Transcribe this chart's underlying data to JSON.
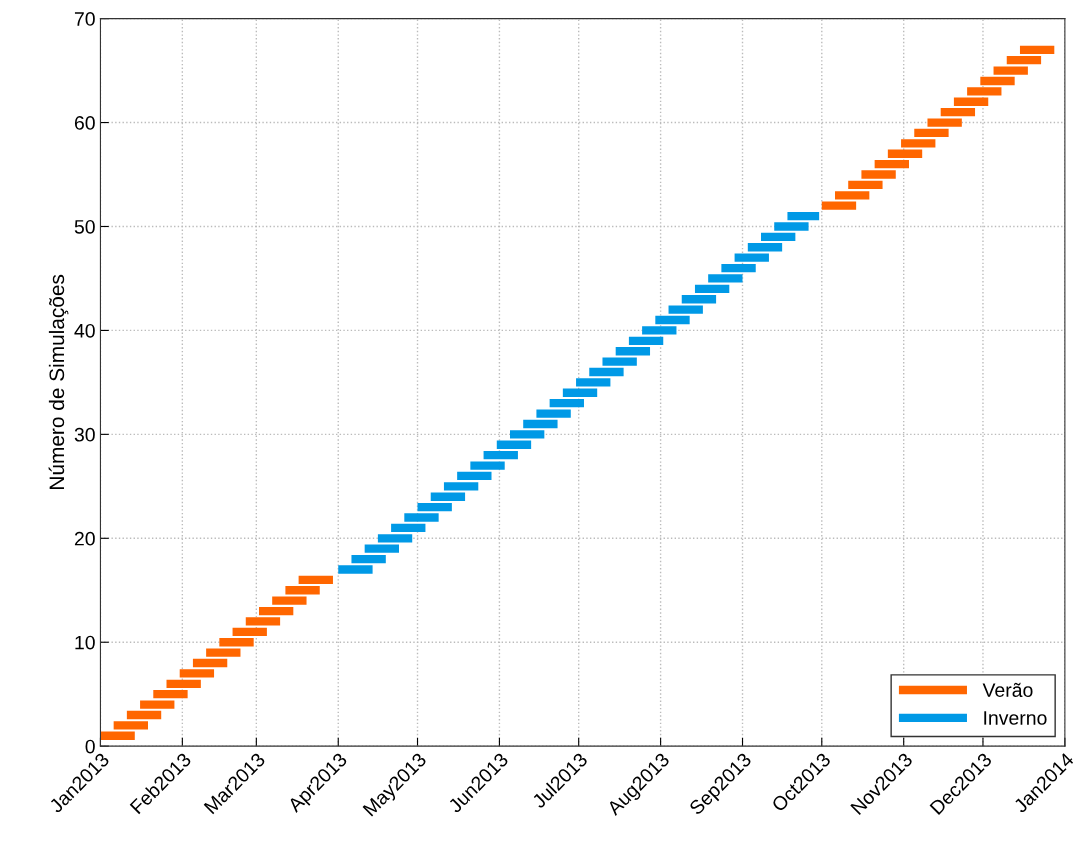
{
  "chart_data": {
    "type": "line",
    "ylabel": "Número de Simulações",
    "legend": "bottom right",
    "grid": true,
    "line_style": "solid",
    "marker": "none",
    "xlim": [
      "2013-01-01",
      "2014-01-01"
    ],
    "ylim": [
      0,
      70
    ],
    "yticks": [
      0,
      10,
      20,
      30,
      40,
      50,
      60,
      70
    ],
    "xticks": [
      {
        "value": "2013-01-01",
        "label": "Jan2013"
      },
      {
        "value": "2013-02-01",
        "label": "Feb2013"
      },
      {
        "value": "2013-03-01",
        "label": "Mar2013"
      },
      {
        "value": "2013-04-01",
        "label": "Apr2013"
      },
      {
        "value": "2013-05-01",
        "label": "May2013"
      },
      {
        "value": "2013-06-01",
        "label": "Jun2013"
      },
      {
        "value": "2013-07-01",
        "label": "Jul2013"
      },
      {
        "value": "2013-08-01",
        "label": "Aug2013"
      },
      {
        "value": "2013-09-01",
        "label": "Sep2013"
      },
      {
        "value": "2013-10-01",
        "label": "Oct2013"
      },
      {
        "value": "2013-11-01",
        "label": "Nov2013"
      },
      {
        "value": "2013-12-01",
        "label": "Dec2013"
      },
      {
        "value": "2014-01-01",
        "label": "Jan2014"
      }
    ],
    "series": [
      {
        "name": "Verão",
        "color": "#ff6600",
        "x": [
          "2013-01-01",
          "2013-01-14",
          null,
          "2013-01-06",
          "2013-01-19",
          null,
          "2013-01-11",
          "2013-01-24",
          null,
          "2013-01-16",
          "2013-01-29",
          null,
          "2013-01-21",
          "2013-02-03",
          null,
          "2013-01-26",
          "2013-02-08",
          null,
          "2013-01-31",
          "2013-02-13",
          null,
          "2013-02-05",
          "2013-02-18",
          null,
          "2013-02-10",
          "2013-02-23",
          null,
          "2013-02-15",
          "2013-02-28",
          null,
          "2013-02-20",
          "2013-03-05",
          null,
          "2013-02-25",
          "2013-03-10",
          null,
          "2013-03-02",
          "2013-03-15",
          null,
          "2013-03-07",
          "2013-03-20",
          null,
          "2013-03-12",
          "2013-03-25",
          null,
          "2013-03-17",
          "2013-03-30",
          null,
          "2013-10-01",
          "2013-10-14",
          null,
          "2013-10-06",
          "2013-10-19",
          null,
          "2013-10-11",
          "2013-10-24",
          null,
          "2013-10-16",
          "2013-10-29",
          null,
          "2013-10-21",
          "2013-11-03",
          null,
          "2013-10-26",
          "2013-11-08",
          null,
          "2013-10-31",
          "2013-11-13",
          null,
          "2013-11-05",
          "2013-11-18",
          null,
          "2013-11-10",
          "2013-11-23",
          null,
          "2013-11-15",
          "2013-11-28",
          null,
          "2013-11-20",
          "2013-12-03",
          null,
          "2013-11-25",
          "2013-12-08",
          null,
          "2013-11-30",
          "2013-12-13",
          null,
          "2013-12-05",
          "2013-12-18",
          null,
          "2013-12-10",
          "2013-12-23",
          null,
          "2013-12-15",
          "2013-12-28",
          null
        ],
        "values": [
          1,
          1,
          null,
          2,
          2,
          null,
          3,
          3,
          null,
          4,
          4,
          null,
          5,
          5,
          null,
          6,
          6,
          null,
          7,
          7,
          null,
          8,
          8,
          null,
          9,
          9,
          null,
          10,
          10,
          null,
          11,
          11,
          null,
          12,
          12,
          null,
          13,
          13,
          null,
          14,
          14,
          null,
          15,
          15,
          null,
          16,
          16,
          null,
          52,
          52,
          null,
          53,
          53,
          null,
          54,
          54,
          null,
          55,
          55,
          null,
          56,
          56,
          null,
          57,
          57,
          null,
          58,
          58,
          null,
          59,
          59,
          null,
          60,
          60,
          null,
          61,
          61,
          null,
          62,
          62,
          null,
          63,
          63,
          null,
          64,
          64,
          null,
          65,
          65,
          null,
          66,
          66,
          null,
          67,
          67,
          null
        ]
      },
      {
        "name": "Inverno",
        "color": "#0099e6",
        "x": [
          "2013-04-01",
          "2013-04-14",
          null,
          "2013-04-06",
          "2013-04-19",
          null,
          "2013-04-11",
          "2013-04-24",
          null,
          "2013-04-16",
          "2013-04-29",
          null,
          "2013-04-21",
          "2013-05-04",
          null,
          "2013-04-26",
          "2013-05-09",
          null,
          "2013-05-01",
          "2013-05-14",
          null,
          "2013-05-06",
          "2013-05-19",
          null,
          "2013-05-11",
          "2013-05-24",
          null,
          "2013-05-16",
          "2013-05-29",
          null,
          "2013-05-21",
          "2013-06-03",
          null,
          "2013-05-26",
          "2013-06-08",
          null,
          "2013-05-31",
          "2013-06-13",
          null,
          "2013-06-05",
          "2013-06-18",
          null,
          "2013-06-10",
          "2013-06-23",
          null,
          "2013-06-15",
          "2013-06-28",
          null,
          "2013-06-20",
          "2013-07-03",
          null,
          "2013-06-25",
          "2013-07-08",
          null,
          "2013-06-30",
          "2013-07-13",
          null,
          "2013-07-05",
          "2013-07-18",
          null,
          "2013-07-10",
          "2013-07-23",
          null,
          "2013-07-15",
          "2013-07-28",
          null,
          "2013-07-20",
          "2013-08-02",
          null,
          "2013-07-25",
          "2013-08-07",
          null,
          "2013-07-30",
          "2013-08-12",
          null,
          "2013-08-04",
          "2013-08-17",
          null,
          "2013-08-09",
          "2013-08-22",
          null,
          "2013-08-14",
          "2013-08-27",
          null,
          "2013-08-19",
          "2013-09-01",
          null,
          "2013-08-24",
          "2013-09-06",
          null,
          "2013-08-29",
          "2013-09-11",
          null,
          "2013-09-03",
          "2013-09-16",
          null,
          "2013-09-08",
          "2013-09-21",
          null,
          "2013-09-13",
          "2013-09-26",
          null,
          "2013-09-18",
          "2013-09-30",
          null
        ],
        "values": [
          17,
          17,
          null,
          18,
          18,
          null,
          19,
          19,
          null,
          20,
          20,
          null,
          21,
          21,
          null,
          22,
          22,
          null,
          23,
          23,
          null,
          24,
          24,
          null,
          25,
          25,
          null,
          26,
          26,
          null,
          27,
          27,
          null,
          28,
          28,
          null,
          29,
          29,
          null,
          30,
          30,
          null,
          31,
          31,
          null,
          32,
          32,
          null,
          33,
          33,
          null,
          34,
          34,
          null,
          35,
          35,
          null,
          36,
          36,
          null,
          37,
          37,
          null,
          38,
          38,
          null,
          39,
          39,
          null,
          40,
          40,
          null,
          41,
          41,
          null,
          42,
          42,
          null,
          43,
          43,
          null,
          44,
          44,
          null,
          45,
          45,
          null,
          46,
          46,
          null,
          47,
          47,
          null,
          48,
          48,
          null,
          49,
          49,
          null,
          50,
          50,
          null,
          51,
          51,
          null
        ]
      }
    ]
  }
}
